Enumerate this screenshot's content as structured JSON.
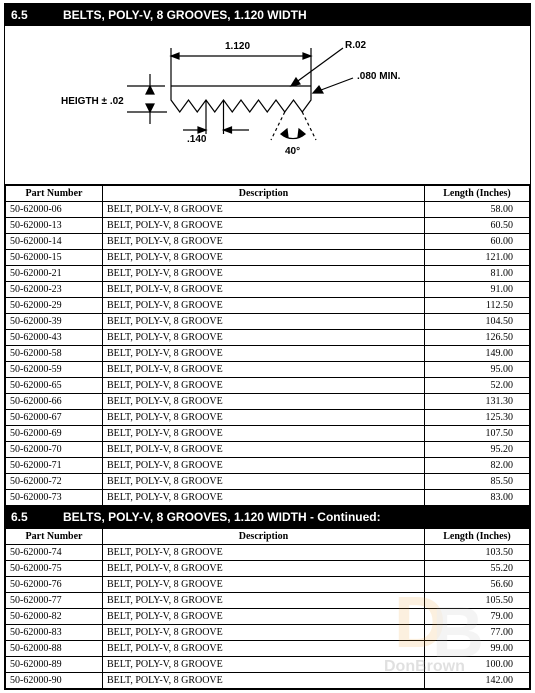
{
  "section": {
    "number": "6.5",
    "title": "BELTS, POLY-V, 8 GROOVES, 1.120 WIDTH",
    "title_cont": "BELTS, POLY-V, 8 GROOVES, 1.120 WIDTH - Continued:"
  },
  "diagram": {
    "overall_width": "1.120",
    "radius": "R.02",
    "min": ".080 MIN.",
    "height_label": "HEIGTH ± .02",
    "pitch": ".140",
    "angle": "40°"
  },
  "columns": {
    "part": "Part Number",
    "desc": "Description",
    "len": "Length (Inches)"
  },
  "rows1": [
    {
      "pn": "50-62000-06",
      "d": "BELT, POLY-V, 8 GROOVE",
      "l": "58.00"
    },
    {
      "pn": "50-62000-13",
      "d": "BELT, POLY-V, 8 GROOVE",
      "l": "60.50"
    },
    {
      "pn": "50-62000-14",
      "d": "BELT, POLY-V, 8 GROOVE",
      "l": "60.00"
    },
    {
      "pn": "50-62000-15",
      "d": "BELT, POLY-V, 8 GROOVE",
      "l": "121.00"
    },
    {
      "pn": "50-62000-21",
      "d": "BELT, POLY-V, 8 GROOVE",
      "l": "81.00"
    },
    {
      "pn": "50-62000-23",
      "d": "BELT, POLY-V, 8 GROOVE",
      "l": "91.00"
    },
    {
      "pn": "50-62000-29",
      "d": "BELT, POLY-V, 8 GROOVE",
      "l": "112.50"
    },
    {
      "pn": "50-62000-39",
      "d": "BELT, POLY-V, 8 GROOVE",
      "l": "104.50"
    },
    {
      "pn": "50-62000-43",
      "d": "BELT, POLY-V, 8 GROOVE",
      "l": "126.50"
    },
    {
      "pn": "50-62000-58",
      "d": "BELT, POLY-V, 8 GROOVE",
      "l": "149.00"
    },
    {
      "pn": "50-62000-59",
      "d": "BELT, POLY-V, 8 GROOVE",
      "l": "95.00"
    },
    {
      "pn": "50-62000-65",
      "d": "BELT, POLY-V, 8 GROOVE",
      "l": "52.00"
    },
    {
      "pn": "50-62000-66",
      "d": "BELT, POLY-V, 8 GROOVE",
      "l": "131.30"
    },
    {
      "pn": "50-62000-67",
      "d": "BELT, POLY-V, 8 GROOVE",
      "l": "125.30"
    },
    {
      "pn": "50-62000-69",
      "d": "BELT, POLY-V, 8 GROOVE",
      "l": "107.50"
    },
    {
      "pn": "50-62000-70",
      "d": "BELT, POLY-V, 8 GROOVE",
      "l": "95.20"
    },
    {
      "pn": "50-62000-71",
      "d": "BELT, POLY-V, 8 GROOVE",
      "l": "82.00"
    },
    {
      "pn": "50-62000-72",
      "d": "BELT, POLY-V, 8 GROOVE",
      "l": "85.50"
    },
    {
      "pn": "50-62000-73",
      "d": "BELT, POLY-V, 8 GROOVE",
      "l": "83.00"
    }
  ],
  "rows2": [
    {
      "pn": "50-62000-74",
      "d": "BELT, POLY-V, 8 GROOVE",
      "l": "103.50"
    },
    {
      "pn": "50-62000-75",
      "d": "BELT, POLY-V, 8 GROOVE",
      "l": "55.20"
    },
    {
      "pn": "50-62000-76",
      "d": "BELT, POLY-V, 8 GROOVE",
      "l": "56.60"
    },
    {
      "pn": "50-62000-77",
      "d": "BELT, POLY-V, 8 GROOVE",
      "l": "105.50"
    },
    {
      "pn": "50-62000-82",
      "d": "BELT, POLY-V, 8 GROOVE",
      "l": "79.00"
    },
    {
      "pn": "50-62000-83",
      "d": "BELT, POLY-V, 8 GROOVE",
      "l": "77.00"
    },
    {
      "pn": "50-62000-88",
      "d": "BELT, POLY-V, 8 GROOVE",
      "l": "99.00"
    },
    {
      "pn": "50-62000-89",
      "d": "BELT, POLY-V, 8 GROOVE",
      "l": "100.00"
    },
    {
      "pn": "50-62000-90",
      "d": "BELT, POLY-V, 8 GROOVE",
      "l": "142.00"
    }
  ],
  "watermark": "DonBrown",
  "colors": {
    "band_bg": "#000000",
    "band_fg": "#ffffff",
    "line": "#000000",
    "wm1": "#f0a030",
    "wm2": "#bbbbbb"
  }
}
